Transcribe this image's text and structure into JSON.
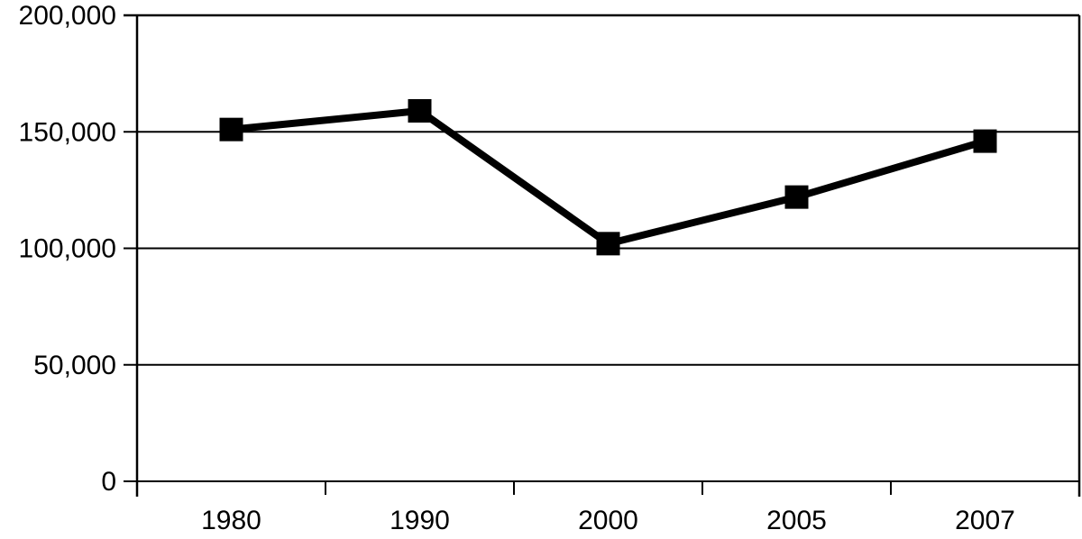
{
  "chart_data": {
    "type": "line",
    "categories": [
      "1980",
      "1990",
      "2000",
      "2005",
      "2007"
    ],
    "values": [
      151000,
      159000,
      102000,
      122000,
      146000
    ],
    "ylim": [
      0,
      200000
    ],
    "yticks": [
      0,
      50000,
      100000,
      150000,
      200000
    ],
    "ytick_labels": [
      "0",
      "50,000",
      "100,000",
      "150,000",
      "200,000"
    ],
    "grid": true,
    "legend_position": "none",
    "marker": "square",
    "line_color": "#000000",
    "marker_color": "#000000",
    "axis_color": "#000000",
    "gridline_color": "#000000",
    "background_color": "#ffffff"
  }
}
